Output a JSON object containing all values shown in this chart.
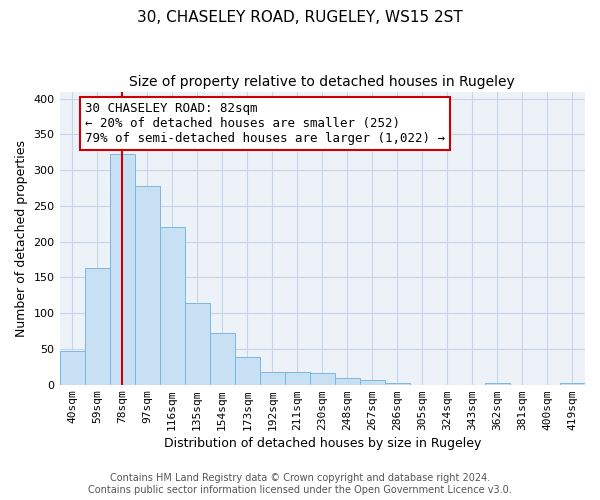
{
  "title": "30, CHASELEY ROAD, RUGELEY, WS15 2ST",
  "subtitle": "Size of property relative to detached houses in Rugeley",
  "xlabel": "Distribution of detached houses by size in Rugeley",
  "ylabel": "Number of detached properties",
  "bin_labels": [
    "40sqm",
    "59sqm",
    "78sqm",
    "97sqm",
    "116sqm",
    "135sqm",
    "154sqm",
    "173sqm",
    "192sqm",
    "211sqm",
    "230sqm",
    "248sqm",
    "267sqm",
    "286sqm",
    "305sqm",
    "324sqm",
    "343sqm",
    "362sqm",
    "381sqm",
    "400sqm",
    "419sqm"
  ],
  "bar_heights": [
    47,
    163,
    322,
    278,
    221,
    114,
    73,
    39,
    18,
    18,
    17,
    10,
    7,
    3,
    0,
    0,
    0,
    3,
    0,
    0,
    2
  ],
  "bar_color": "#c8e0f4",
  "bar_edge_color": "#7ab8e0",
  "highlight_line_color": "#cc0000",
  "annotation_text_line1": "30 CHASELEY ROAD: 82sqm",
  "annotation_text_line2": "← 20% of detached houses are smaller (252)",
  "annotation_text_line3": "79% of semi-detached houses are larger (1,022) →",
  "annotation_box_color": "#ffffff",
  "annotation_box_edge": "#cc0000",
  "ylim": [
    0,
    410
  ],
  "yticks": [
    0,
    50,
    100,
    150,
    200,
    250,
    300,
    350,
    400
  ],
  "footer_line1": "Contains HM Land Registry data © Crown copyright and database right 2024.",
  "footer_line2": "Contains public sector information licensed under the Open Government Licence v3.0.",
  "bg_color": "#ffffff",
  "plot_bg_color": "#edf2f9",
  "grid_color": "#c8d4e8",
  "title_fontsize": 11,
  "subtitle_fontsize": 10,
  "axis_label_fontsize": 9,
  "tick_fontsize": 8,
  "annotation_fontsize": 9,
  "footer_fontsize": 7
}
